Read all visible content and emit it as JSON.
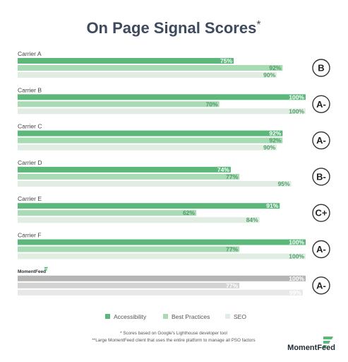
{
  "chart_data": {
    "type": "bar",
    "orientation": "horizontal",
    "title": "On Page Signal Scores",
    "title_marker": "*",
    "xlim": [
      0,
      100
    ],
    "value_suffix": "%",
    "series_names": [
      "Accessibility",
      "Best Practices",
      "SEO"
    ],
    "series_colors": [
      "#5cb87a",
      "#a8dab4",
      "#e1ece3"
    ],
    "series_text_colors": [
      "#ffffff",
      "#4e9e66",
      "#4e9e66"
    ],
    "groups": [
      {
        "label": "Carrier A",
        "values": [
          75,
          92,
          90
        ],
        "grade": "B"
      },
      {
        "label": "Carrier B",
        "values": [
          100,
          70,
          100
        ],
        "grade": "A-"
      },
      {
        "label": "Carrier C",
        "values": [
          92,
          92,
          90
        ],
        "grade": "A-"
      },
      {
        "label": "Carrier D",
        "values": [
          74,
          77,
          95
        ],
        "grade": "B-"
      },
      {
        "label": "Carrier E",
        "values": [
          91,
          62,
          84
        ],
        "grade": "C+"
      },
      {
        "label": "Carrier F",
        "values": [
          100,
          77,
          100
        ],
        "grade": "A-"
      },
      {
        "label": "MomentFeed",
        "logo": true,
        "values": [
          100,
          77,
          99
        ],
        "grade": "A-",
        "colors": [
          "#b5b5b5",
          "#d3d3d3",
          "#e8e8e8"
        ],
        "text_color": "#ffffff"
      }
    ],
    "legend_position": "bottom",
    "footnotes": [
      "* Scores based on Google's Lighthouse developer tool",
      "**Large MomentFeed client that uses the entire platform to manage all PSO factors"
    ],
    "brand": "MomentFeed"
  },
  "colors": {
    "accent": "#5cb87a",
    "title": "#3e4a5d"
  }
}
